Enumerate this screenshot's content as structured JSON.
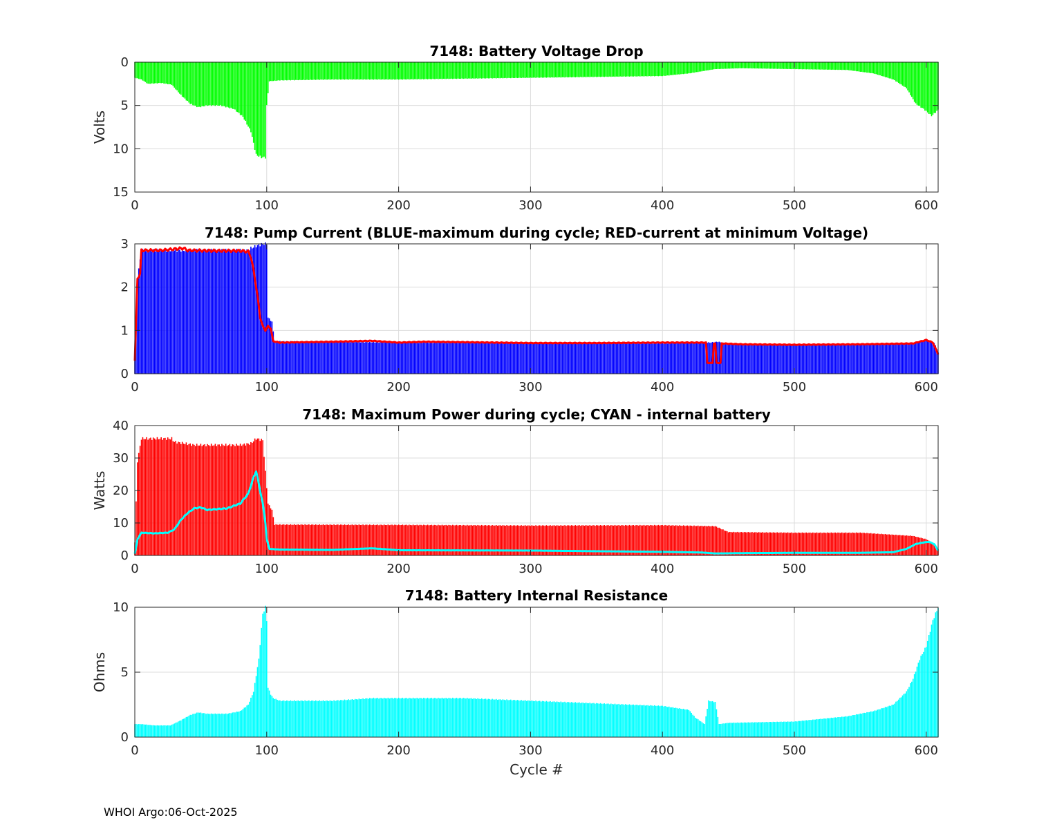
{
  "footer": "WHOI Argo:06-Oct-2025",
  "colors": {
    "green": "#00ff00",
    "blue": "#0000ff",
    "red": "#ff0000",
    "cyan": "#00ffff",
    "grid": "#dcdcdc",
    "axis": "#262626"
  },
  "chart_data": [
    {
      "id": "voltage",
      "type": "bar",
      "title": "7148: Battery Voltage Drop",
      "xlabel": "",
      "ylabel": "Volts",
      "xlim": [
        0,
        609
      ],
      "ylim": [
        0,
        15
      ],
      "y_reversed": true,
      "xticks": [
        0,
        100,
        200,
        300,
        400,
        500,
        600
      ],
      "yticks": [
        0,
        5,
        10,
        15
      ],
      "grid": true,
      "series": [
        {
          "name": "Voltage drop",
          "style": "bars",
          "color": "#00ff00",
          "points": [
            [
              0,
              1.8
            ],
            [
              5,
              2.0
            ],
            [
              10,
              2.5
            ],
            [
              20,
              2.4
            ],
            [
              28,
              2.6
            ],
            [
              35,
              3.8
            ],
            [
              42,
              4.8
            ],
            [
              48,
              5.2
            ],
            [
              55,
              5.0
            ],
            [
              65,
              5.0
            ],
            [
              75,
              5.4
            ],
            [
              82,
              6.3
            ],
            [
              88,
              8.0
            ],
            [
              92,
              10.7
            ],
            [
              96,
              11.0
            ],
            [
              99,
              11.0
            ],
            [
              100,
              5.0
            ],
            [
              102,
              2.2
            ],
            [
              110,
              2.1
            ],
            [
              150,
              2.0
            ],
            [
              180,
              2.0
            ],
            [
              200,
              2.0
            ],
            [
              300,
              1.8
            ],
            [
              350,
              1.7
            ],
            [
              400,
              1.6
            ],
            [
              420,
              1.3
            ],
            [
              440,
              0.8
            ],
            [
              460,
              0.7
            ],
            [
              500,
              0.8
            ],
            [
              540,
              0.9
            ],
            [
              560,
              1.3
            ],
            [
              575,
              2.0
            ],
            [
              585,
              3.0
            ],
            [
              592,
              4.8
            ],
            [
              598,
              5.4
            ],
            [
              604,
              6.2
            ],
            [
              607,
              5.8
            ],
            [
              609,
              5.5
            ]
          ]
        }
      ]
    },
    {
      "id": "current",
      "type": "bar",
      "title": "7148: Pump Current (BLUE-maximum during cycle; RED-current at minimum Voltage)",
      "xlabel": "",
      "ylabel": "",
      "xlim": [
        0,
        609
      ],
      "ylim": [
        0,
        3
      ],
      "xticks": [
        0,
        100,
        200,
        300,
        400,
        500,
        600
      ],
      "yticks": [
        0,
        1,
        2,
        3
      ],
      "grid": true,
      "series": [
        {
          "name": "BLUE-maximum during cycle",
          "style": "bars",
          "color": "#0000ff",
          "points": [
            [
              0,
              0.3
            ],
            [
              2,
              2.2
            ],
            [
              5,
              2.85
            ],
            [
              40,
              2.85
            ],
            [
              86,
              2.85
            ],
            [
              88,
              2.9
            ],
            [
              92,
              2.95
            ],
            [
              97,
              3.0
            ],
            [
              100,
              3.0
            ],
            [
              101,
              1.3
            ],
            [
              104,
              1.2
            ],
            [
              106,
              0.75
            ],
            [
              200,
              0.72
            ],
            [
              300,
              0.71
            ],
            [
              400,
              0.7
            ],
            [
              430,
              0.72
            ],
            [
              436,
              0.72
            ],
            [
              442,
              0.74
            ],
            [
              445,
              0.72
            ],
            [
              450,
              0.68
            ],
            [
              500,
              0.67
            ],
            [
              590,
              0.7
            ],
            [
              600,
              0.78
            ],
            [
              606,
              0.72
            ],
            [
              609,
              0.5
            ]
          ]
        },
        {
          "name": "RED-current at minimum Voltage",
          "style": "line",
          "color": "#ff0000",
          "points": [
            [
              0,
              0.3
            ],
            [
              2,
              2.2
            ],
            [
              4,
              2.3
            ],
            [
              5,
              2.85
            ],
            [
              20,
              2.85
            ],
            [
              37,
              2.9
            ],
            [
              40,
              2.85
            ],
            [
              60,
              2.84
            ],
            [
              80,
              2.84
            ],
            [
              86,
              2.82
            ],
            [
              88,
              2.7
            ],
            [
              90,
              2.4
            ],
            [
              93,
              1.8
            ],
            [
              95,
              1.3
            ],
            [
              97,
              1.1
            ],
            [
              99,
              1.0
            ],
            [
              101,
              1.1
            ],
            [
              103,
              1.05
            ],
            [
              105,
              0.75
            ],
            [
              110,
              0.72
            ],
            [
              130,
              0.73
            ],
            [
              150,
              0.74
            ],
            [
              180,
              0.76
            ],
            [
              200,
              0.72
            ],
            [
              220,
              0.74
            ],
            [
              300,
              0.71
            ],
            [
              350,
              0.71
            ],
            [
              400,
              0.72
            ],
            [
              433,
              0.72
            ],
            [
              434,
              0.25
            ],
            [
              438,
              0.25
            ],
            [
              439,
              0.7
            ],
            [
              440,
              0.7
            ],
            [
              441,
              0.25
            ],
            [
              444,
              0.25
            ],
            [
              445,
              0.7
            ],
            [
              460,
              0.68
            ],
            [
              500,
              0.67
            ],
            [
              550,
              0.68
            ],
            [
              590,
              0.7
            ],
            [
              600,
              0.78
            ],
            [
              605,
              0.72
            ],
            [
              609,
              0.45
            ]
          ]
        }
      ]
    },
    {
      "id": "power",
      "type": "bar",
      "title": "7148: Maximum Power during cycle; CYAN - internal battery",
      "xlabel": "",
      "ylabel": "Watts",
      "xlim": [
        0,
        609
      ],
      "ylim": [
        0,
        40
      ],
      "xticks": [
        0,
        100,
        200,
        300,
        400,
        500,
        600
      ],
      "yticks": [
        0,
        10,
        20,
        30,
        40
      ],
      "grid": true,
      "series": [
        {
          "name": "Maximum power",
          "style": "bars",
          "color": "#ff0000",
          "points": [
            [
              0,
              4
            ],
            [
              2,
              29
            ],
            [
              5,
              36
            ],
            [
              28,
              36
            ],
            [
              30,
              35
            ],
            [
              45,
              34
            ],
            [
              80,
              34
            ],
            [
              88,
              34.5
            ],
            [
              92,
              36
            ],
            [
              97,
              35.5
            ],
            [
              101,
              16
            ],
            [
              104,
              14
            ],
            [
              106,
              9.5
            ],
            [
              200,
              9.4
            ],
            [
              300,
              9.2
            ],
            [
              400,
              9.3
            ],
            [
              440,
              9
            ],
            [
              450,
              7.2
            ],
            [
              500,
              7
            ],
            [
              550,
              7
            ],
            [
              570,
              6.5
            ],
            [
              590,
              6
            ],
            [
              600,
              5
            ],
            [
              606,
              3.5
            ],
            [
              609,
              2
            ]
          ]
        },
        {
          "name": "CYAN - internal battery",
          "style": "line",
          "color": "#00ffff",
          "points": [
            [
              0,
              0.5
            ],
            [
              2,
              5
            ],
            [
              5,
              7
            ],
            [
              15,
              6.8
            ],
            [
              25,
              7
            ],
            [
              30,
              8
            ],
            [
              35,
              11
            ],
            [
              40,
              13
            ],
            [
              45,
              14.5
            ],
            [
              50,
              14.8
            ],
            [
              55,
              14
            ],
            [
              60,
              14.2
            ],
            [
              70,
              14.5
            ],
            [
              80,
              16
            ],
            [
              86,
              19
            ],
            [
              90,
              24
            ],
            [
              92,
              26
            ],
            [
              94,
              22
            ],
            [
              97,
              16
            ],
            [
              99,
              10
            ],
            [
              100,
              5
            ],
            [
              102,
              2
            ],
            [
              110,
              1.8
            ],
            [
              150,
              1.7
            ],
            [
              180,
              2.2
            ],
            [
              200,
              1.6
            ],
            [
              300,
              1.5
            ],
            [
              350,
              1.3
            ],
            [
              400,
              1.1
            ],
            [
              430,
              0.9
            ],
            [
              440,
              0.6
            ],
            [
              460,
              0.7
            ],
            [
              500,
              0.8
            ],
            [
              550,
              0.8
            ],
            [
              575,
              1
            ],
            [
              585,
              2
            ],
            [
              592,
              3.5
            ],
            [
              598,
              4
            ],
            [
              602,
              4.2
            ],
            [
              606,
              3.5
            ],
            [
              609,
              1.5
            ]
          ]
        }
      ]
    },
    {
      "id": "resistance",
      "type": "bar",
      "title": "7148: Battery Internal Resistance",
      "xlabel": "Cycle #",
      "ylabel": "Ohms",
      "xlim": [
        0,
        609
      ],
      "ylim": [
        0,
        10
      ],
      "xticks": [
        0,
        100,
        200,
        300,
        400,
        500,
        600
      ],
      "yticks": [
        0,
        5,
        10
      ],
      "grid": true,
      "series": [
        {
          "name": "Internal resistance",
          "style": "bars",
          "color": "#00ffff",
          "points": [
            [
              0,
              1.0
            ],
            [
              5,
              1.0
            ],
            [
              15,
              0.9
            ],
            [
              27,
              0.9
            ],
            [
              35,
              1.3
            ],
            [
              42,
              1.7
            ],
            [
              48,
              1.9
            ],
            [
              55,
              1.8
            ],
            [
              70,
              1.8
            ],
            [
              80,
              2.0
            ],
            [
              86,
              2.5
            ],
            [
              90,
              3.5
            ],
            [
              94,
              6
            ],
            [
              97,
              9.5
            ],
            [
              99,
              10
            ],
            [
              100,
              9
            ],
            [
              101,
              3.8
            ],
            [
              103,
              3.3
            ],
            [
              105,
              3.0
            ],
            [
              110,
              2.8
            ],
            [
              150,
              2.8
            ],
            [
              180,
              3.0
            ],
            [
              200,
              3.0
            ],
            [
              250,
              3.0
            ],
            [
              300,
              2.8
            ],
            [
              350,
              2.6
            ],
            [
              400,
              2.4
            ],
            [
              420,
              2.1
            ],
            [
              425,
              1.5
            ],
            [
              432,
              1.0
            ],
            [
              435,
              2.8
            ],
            [
              440,
              2.7
            ],
            [
              443,
              1.0
            ],
            [
              450,
              1.1
            ],
            [
              500,
              1.2
            ],
            [
              540,
              1.6
            ],
            [
              560,
              2.0
            ],
            [
              575,
              2.5
            ],
            [
              585,
              3.5
            ],
            [
              590,
              4.5
            ],
            [
              595,
              6
            ],
            [
              600,
              7
            ],
            [
              605,
              9
            ],
            [
              609,
              10
            ]
          ]
        }
      ]
    }
  ]
}
